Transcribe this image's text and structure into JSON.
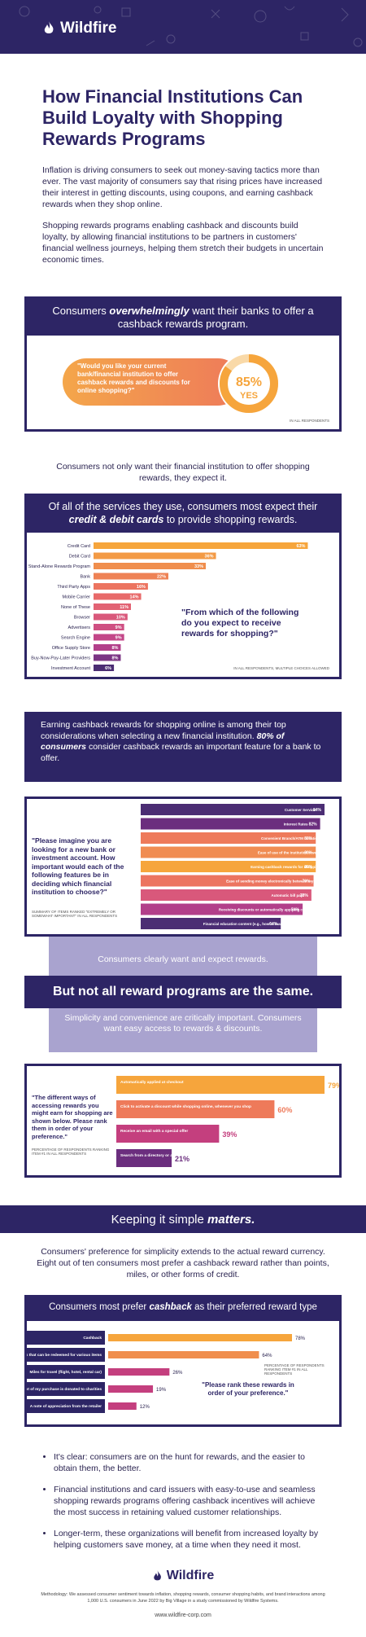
{
  "brand": {
    "name": "Wildfire",
    "url": "www.wildfire-corp.com"
  },
  "title": "How Financial Institutions Can Build Loyalty with Shopping Rewards Programs",
  "intro": [
    "Inflation is driving consumers to seek out money-saving tactics more than ever. The vast majority of consumers say that rising prices have increased their interest in getting discounts, using coupons, and earning cashback rewards when they shop online.",
    "Shopping rewards programs enabling cashback and discounts build loyalty, by allowing financial institutions to be partners in customers' financial wellness journeys, helping them stretch their budgets in uncertain economic times."
  ],
  "section1": {
    "banner_pre": "Consumers ",
    "banner_em": "overwhelmingly",
    "banner_post": " want their banks to offer a cashback rewards program.",
    "question": "\"Would you like your current bank/financial institution to offer cashback rewards and discounts for online shopping?\"",
    "pct": "85%",
    "yes": "YES",
    "note": "IN ALL RESPONDENTS"
  },
  "transition1": "Consumers not only want their financial institution to offer shopping rewards, they expect it.",
  "section2": {
    "banner_pre": "Of all of the services they use, consumers most expect their ",
    "banner_em": "credit & debit cards",
    "banner_post": " to provide shopping rewards.",
    "question": "\"From which of the following do you expect to receive rewards for shopping?\"",
    "note": "IN ALL RESPONDENTS, MULTIPLE CHOICES ALLOWED"
  },
  "section3": {
    "banner_pre": "Earning cashback rewards for shopping online is among their top considerations when selecting a new financial institution. ",
    "banner_em": "80% of consumers",
    "banner_post": " consider cashback rewards an important feature for a bank to offer.",
    "question": "\"Please imagine you are looking for a new bank or investment account. How important would each of the following features be in deciding which financial institution to choose?\"",
    "note": "SUMMARY OF ITEMS RANKED \"EXTREMELY OR SOMEWHAT IMPORTANT\" IN ALL RESPONDENTS"
  },
  "section4": {
    "line1": "Consumers clearly want and expect rewards.",
    "line2": "But not all reward programs are the same.",
    "line3": "Simplicity and convenience are critically important. Consumers want easy access to rewards & discounts.",
    "question": "\"The different ways of accessing rewards you might earn for shopping are shown below. Please rank them in order of your preference.\"",
    "note": "PERCENTAGE OF RESPONDENTS RANKING ITEM #1 IN ALL RESPONDENTS"
  },
  "section5": {
    "banner_pre": "Keeping it simple ",
    "banner_em": "matters.",
    "text": "Consumers' preference for simplicity extends to the actual reward currency. Eight out of ten consumers most prefer a cashback reward rather than points, miles, or other forms of credit.",
    "header_pre": "Consumers most prefer ",
    "header_em": "cashback",
    "header_post": " as their preferred reward type",
    "question": "\"Please rank these rewards in order of your preference.\"",
    "note": "PERCENTAGE OF RESPONDENTS RANKING ITEM #1 IN ALL RESPONDENTS"
  },
  "bullets": [
    "It's clear: consumers are on the hunt for rewards, and the easier to obtain them, the better.",
    "Financial institutions and card issuers with easy-to-use and seamless shopping rewards programs offering cashback incentives will achieve the most success in retaining valued customer relationships.",
    "Longer-term, these organizations will benefit from increased loyalty by helping customers save money, at a time when they need it most."
  ],
  "methodology": "Methodology: We assessed consumer sentiment towards inflation, shopping rewards, consumer shopping habits, and brand interactions among 1,000 U.S. consumers in June 2022 by Big Village in a study commissioned by Wildfire Systems.",
  "colors": {
    "navy": "#2d2565",
    "orange": "#f6a53c",
    "coral": "#ee6f5a",
    "magenta": "#c43f7e",
    "purple": "#6b2e7e",
    "lavender": "#a9a3cf"
  },
  "chart_data": [
    {
      "type": "pie",
      "title": "Would you like your current bank/financial institution to offer cashback rewards and discounts for online shopping?",
      "values": [
        85,
        15
      ],
      "categories": [
        "YES",
        ""
      ]
    },
    {
      "type": "bar",
      "title": "From which of the following do you expect to receive rewards for shopping?",
      "categories": [
        "Credit Card",
        "Debit Card",
        "Stand-Alone Rewards Program",
        "Bank",
        "Third Party Apps",
        "Mobile Carrier",
        "None of These",
        "Browser",
        "Advertisers",
        "Search Engine",
        "Office Supply Store",
        "Buy-Now-Pay-Later Providers",
        "Investment Account"
      ],
      "values": [
        63,
        36,
        33,
        22,
        16,
        14,
        11,
        10,
        9,
        9,
        8,
        8,
        6
      ],
      "xlim": [
        0,
        66
      ]
    },
    {
      "type": "bar",
      "title": "Please imagine you are looking for a new bank or investment account. How important would each of the following features be in deciding which financial institution to choose?",
      "categories": [
        "Customer Service",
        "Interest Rates",
        "Convenient Branch/ATM Locations",
        "Ease of use of the institution's website",
        "Earning cashback rewards for shopping online",
        "Ease of sending money electronically between myself and friends/family",
        "Automatic bill pay",
        "Receiving discounts or automatically applying coupons when I shop",
        "Financial education content (e.g., how to manage my budget)"
      ],
      "values": [
        84,
        82,
        80,
        80,
        80,
        79,
        78,
        74,
        64
      ],
      "xlim": [
        0,
        84
      ]
    },
    {
      "type": "bar",
      "title": "The different ways of accessing rewards you might earn for shopping are shown below. Please rank them in order of your preference.",
      "categories": [
        "Automatically applied at checkout",
        "Click to activate a discount while shopping online, whenever you shop",
        "Receive an email with a special offer",
        "Search from a directory or a list of offers from brands within my bank/financial institution's app"
      ],
      "values": [
        79,
        60,
        39,
        21
      ],
      "xlim": [
        0,
        79
      ]
    },
    {
      "type": "bar",
      "title": "Please rank these rewards in order of your preference.",
      "categories": [
        "Cashback",
        "Points that can be redeemed for various items",
        "Miles for travel (flight, hotel, rental car)",
        "A percent of my purchase is donated to charities",
        "A note of appreciation from the retailer"
      ],
      "values": [
        78,
        64,
        26,
        19,
        12
      ],
      "xlim": [
        0,
        78
      ]
    }
  ]
}
